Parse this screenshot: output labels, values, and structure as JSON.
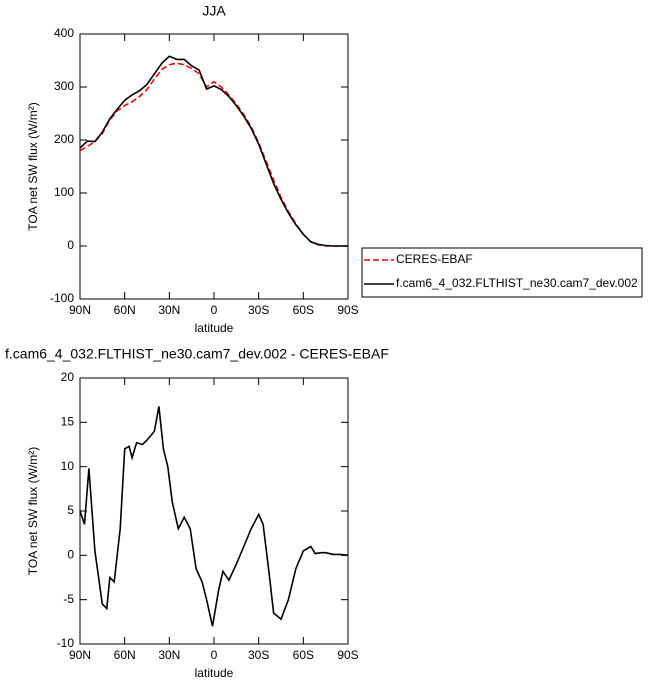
{
  "chart_data": [
    {
      "type": "line",
      "title": "JJA",
      "x_label": "latitude",
      "y_label": "TOA net SW flux (W/m²)",
      "x": [
        90,
        85,
        80,
        75,
        70,
        65,
        60,
        55,
        50,
        45,
        40,
        35,
        30,
        25,
        20,
        15,
        10,
        5,
        0,
        -5,
        -10,
        -15,
        -20,
        -25,
        -30,
        -35,
        -40,
        -45,
        -50,
        -55,
        -60,
        -65,
        -70,
        -75,
        -80,
        -85,
        -90
      ],
      "series": [
        {
          "name": "CERES-EBAF",
          "color": "#ff0000",
          "line_style": "dashed",
          "values": [
            180,
            188,
            197,
            212,
            238,
            255,
            265,
            272,
            282,
            295,
            315,
            333,
            342,
            345,
            342,
            335,
            325,
            300,
            310,
            300,
            285,
            268,
            248,
            225,
            195,
            160,
            125,
            92,
            65,
            42,
            22,
            8,
            2,
            0,
            0,
            0,
            0
          ]
        },
        {
          "name": "f.cam6_4_032.FLTHIST_ne30.cam7_dev.002",
          "color": "#000000",
          "line_style": "solid",
          "values": [
            185,
            198,
            197,
            215,
            240,
            258,
            275,
            285,
            293,
            305,
            325,
            345,
            358,
            352,
            352,
            340,
            332,
            296,
            302,
            295,
            282,
            265,
            245,
            222,
            192,
            155,
            118,
            88,
            62,
            40,
            22,
            8,
            3,
            1,
            0,
            0,
            0
          ]
        }
      ],
      "xlim": [
        90,
        -90
      ],
      "xticks": [
        {
          "value": 90,
          "label": "90N"
        },
        {
          "value": 60,
          "label": "60N"
        },
        {
          "value": 30,
          "label": "30N"
        },
        0,
        {
          "value": -30,
          "label": "30S"
        },
        {
          "value": -60,
          "label": "60S"
        },
        {
          "value": -90,
          "label": "90S"
        }
      ],
      "ylim": [
        -100,
        400
      ],
      "yticks": [
        -100,
        0,
        100,
        200,
        300,
        400
      ],
      "legend": "outside-right"
    },
    {
      "type": "line",
      "title": "f.cam6_4_032.FLTHIST_ne30.cam7_dev.002 - CERES-EBAF",
      "x_label": "latitude",
      "y_label": "TOA net SW flux (W/m²)",
      "x": [
        90,
        87,
        84,
        80,
        75,
        72,
        70,
        67,
        63,
        60,
        57,
        55,
        52,
        48,
        45,
        40,
        37,
        34,
        31,
        28,
        24,
        20,
        16,
        12,
        8,
        5,
        1,
        -3,
        -6,
        -10,
        -15,
        -20,
        -25,
        -30,
        -33,
        -37,
        -40,
        -45,
        -50,
        -55,
        -60,
        -65,
        -68,
        -72,
        -75,
        -80,
        -85,
        -90
      ],
      "series": [
        {
          "color": "#000000",
          "line_style": "solid",
          "values": [
            5,
            3.5,
            9.8,
            0.5,
            -5.5,
            -6,
            -2.5,
            -3,
            3,
            12,
            12.3,
            11,
            12.7,
            12.5,
            13,
            14,
            16.8,
            12,
            10,
            6,
            3,
            4.3,
            3,
            -1.5,
            -3,
            -5,
            -8,
            -4,
            -1.8,
            -2.8,
            -1,
            1,
            3,
            4.6,
            3.5,
            -2,
            -6.5,
            -7.2,
            -5,
            -1.5,
            0.5,
            1,
            0.2,
            0.3,
            0.3,
            0.1,
            0.1,
            0
          ]
        }
      ],
      "xlim": [
        90,
        -90
      ],
      "xticks": [
        {
          "value": 90,
          "label": "90N"
        },
        {
          "value": 60,
          "label": "60N"
        },
        {
          "value": 30,
          "label": "30N"
        },
        0,
        {
          "value": -30,
          "label": "30S"
        },
        {
          "value": -60,
          "label": "60S"
        },
        {
          "value": -90,
          "label": "90S"
        }
      ],
      "ylim": [
        -10,
        20
      ],
      "yticks": [
        -10,
        -5,
        0,
        5,
        10,
        15,
        20
      ]
    }
  ]
}
